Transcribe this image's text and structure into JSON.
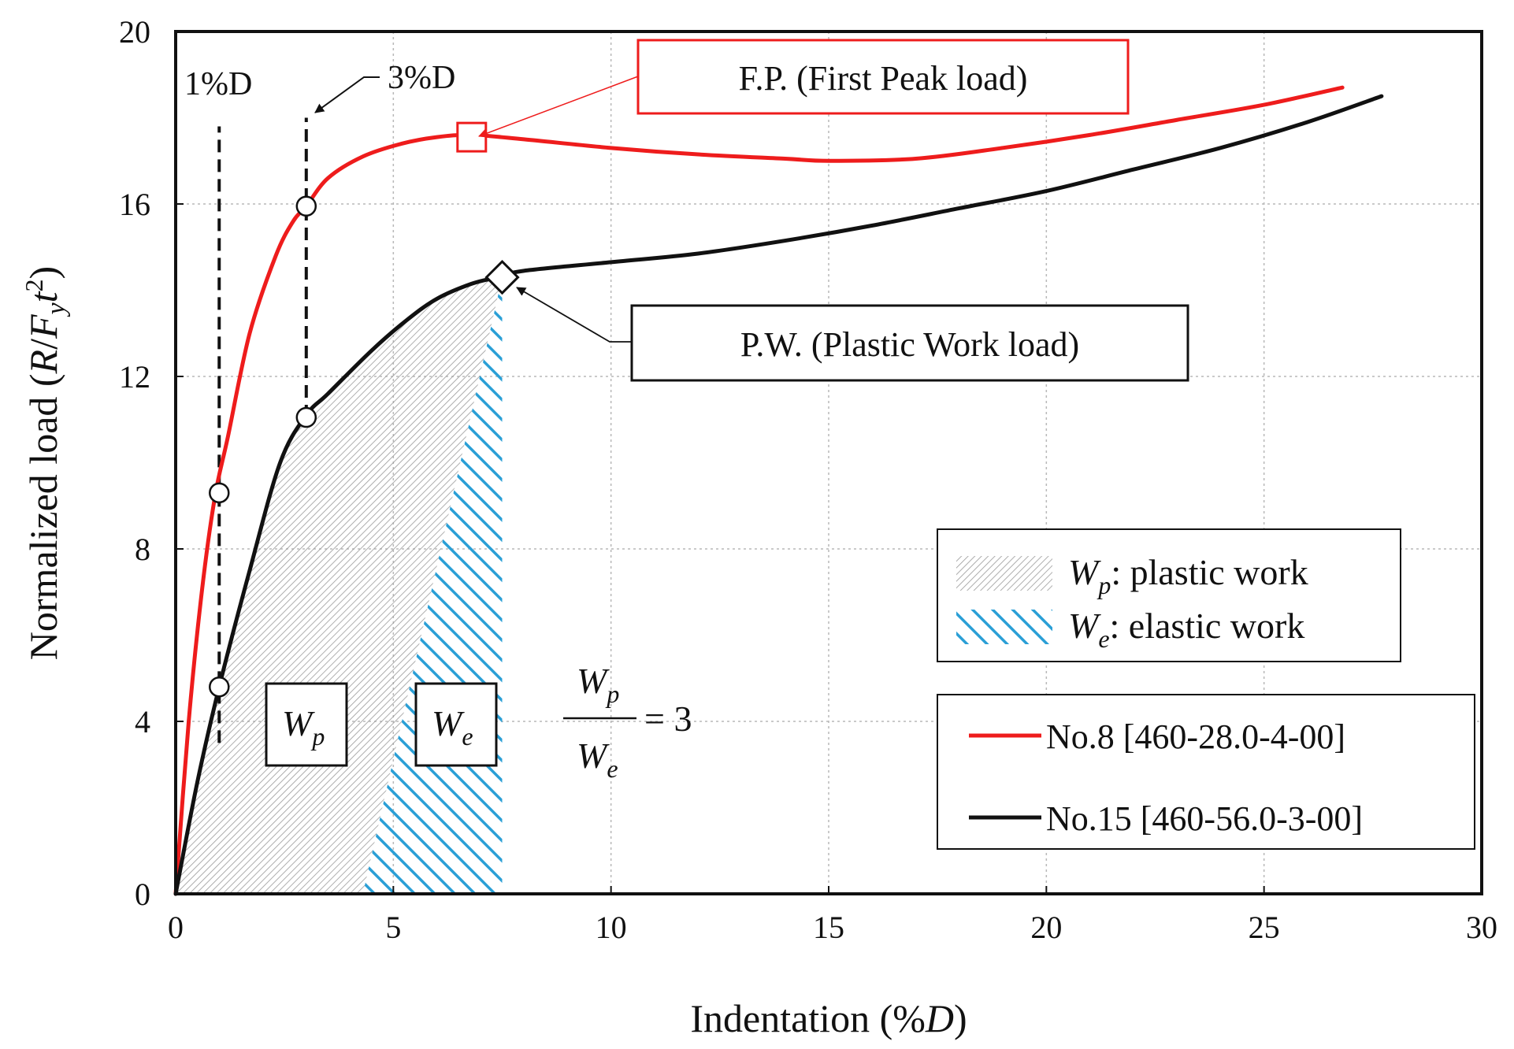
{
  "chart_data": {
    "type": "line",
    "xlabel": "Indentation (%D)",
    "xlabel_parts": {
      "prefix": "Indentation (%",
      "italic": "D",
      "suffix": ")"
    },
    "ylabel": "Normalized load (R/Fyt2)",
    "ylabel_parts": {
      "prefix": "Normalized load (",
      "R": "R",
      "slash": "/",
      "F": "F",
      "Fsub": "y",
      "t": "t",
      "tsup": "2",
      "suffix": ")"
    },
    "xlim": [
      0,
      30
    ],
    "ylim": [
      0,
      20
    ],
    "xticks": [
      0,
      5,
      10,
      15,
      20,
      25,
      30
    ],
    "yticks": [
      0,
      4,
      8,
      12,
      16,
      20
    ],
    "grid": true,
    "series": [
      {
        "name": "No.8 [460-28.0-4-00]",
        "color": "#ee1c1c",
        "x": [
          0,
          0.3,
          0.6,
          0.9,
          1.2,
          1.7,
          2.3,
          2.7,
          3.0,
          3.5,
          4.3,
          5.2,
          6.0,
          6.8,
          8.0,
          10.0,
          12.0,
          14.0,
          15.0,
          17.0,
          19.0,
          21.0,
          23.0,
          25.0,
          26.8
        ],
        "y": [
          0,
          4.0,
          7.0,
          9.2,
          10.6,
          13.0,
          14.8,
          15.6,
          15.95,
          16.6,
          17.1,
          17.4,
          17.55,
          17.6,
          17.5,
          17.3,
          17.15,
          17.05,
          17.0,
          17.05,
          17.3,
          17.6,
          17.95,
          18.3,
          18.7
        ]
      },
      {
        "name": "No.15 [460-56.0-3-00]",
        "color": "#111111",
        "x": [
          0,
          0.5,
          1.0,
          1.7,
          2.4,
          3.0,
          3.5,
          4.5,
          5.3,
          6.0,
          6.8,
          7.4,
          8.0,
          10.0,
          12.0,
          14.0,
          16.0,
          18.0,
          20.0,
          22.0,
          24.0,
          26.0,
          27.7
        ],
        "y": [
          0,
          2.6,
          4.8,
          7.5,
          10.0,
          11.1,
          11.6,
          12.6,
          13.3,
          13.8,
          14.15,
          14.3,
          14.45,
          14.65,
          14.85,
          15.15,
          15.5,
          15.9,
          16.3,
          16.8,
          17.3,
          17.9,
          18.5
        ]
      }
    ],
    "markers": {
      "circles": [
        {
          "x": 1.0,
          "y": 9.3
        },
        {
          "x": 1.0,
          "y": 4.8
        },
        {
          "x": 3.0,
          "y": 15.95
        },
        {
          "x": 3.0,
          "y": 11.05
        }
      ],
      "first_peak": {
        "x": 6.8,
        "y": 17.55
      },
      "plastic_work": {
        "x": 7.5,
        "y": 14.3
      }
    },
    "vlines": [
      {
        "x": 1.0,
        "ymin": 3.5,
        "ymax": 17.8,
        "label": "1%D"
      },
      {
        "x": 3.0,
        "ymin": 11.05,
        "ymax": 18.0,
        "label": "3%D"
      }
    ],
    "regions": {
      "plastic_boundary_x": [
        4.3,
        7.5
      ],
      "plastic_boundary_y": [
        0,
        14.3
      ],
      "elastic_right_x": 7.5
    },
    "annotations": {
      "fp_label": "F.P. (First Peak load)",
      "pw_label": "P.W. (Plastic Work load)",
      "wp_box": "W",
      "wp_sub": "p",
      "we_box": "W",
      "we_sub": "e",
      "ratio_num": "W",
      "ratio_num_sub": "p",
      "ratio_den": "W",
      "ratio_den_sub": "e",
      "ratio_eq": "= 3"
    },
    "legend_regions": [
      {
        "symbol": "W",
        "sub": "p",
        "text": ": plastic work"
      },
      {
        "symbol": "W",
        "sub": "e",
        "text": ": elastic work"
      }
    ],
    "legend_lines": [
      {
        "text": "No.8 [460-28.0-4-00]",
        "color": "#ee1c1c"
      },
      {
        "text": "No.15 [460-56.0-3-00]",
        "color": "#111111"
      }
    ],
    "colors": {
      "elastic_hatch": "#2a9fd6",
      "plastic_hatch": "#9a9a9a",
      "grid": "#b8b8b8"
    }
  }
}
